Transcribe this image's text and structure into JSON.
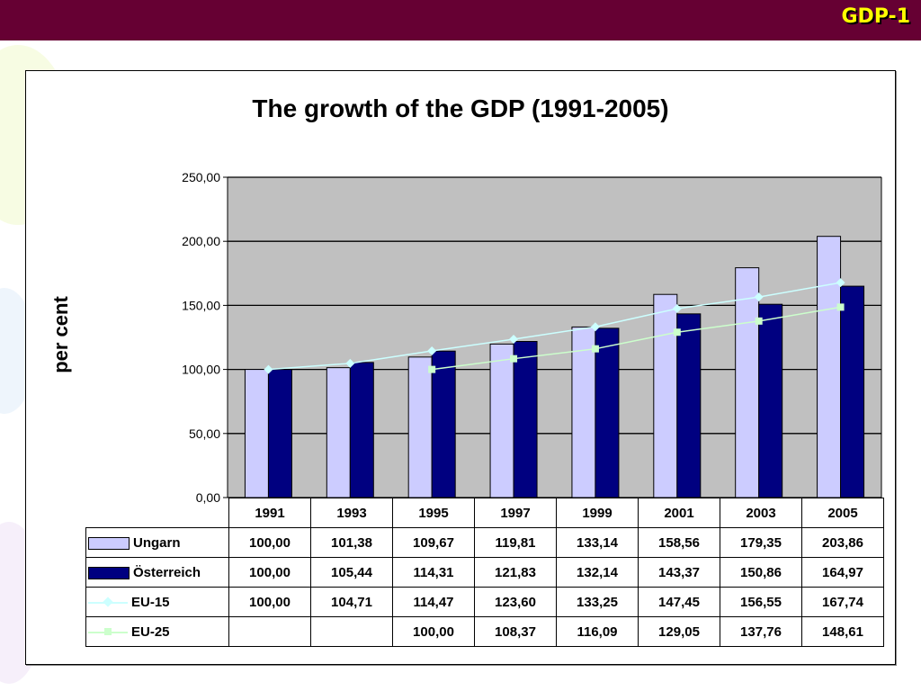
{
  "header": {
    "slide_id": "GDP-1"
  },
  "chart_data": {
    "type": "bar",
    "title": "The growth of the GDP (1991-2005)",
    "xlabel": "",
    "ylabel": "per cent",
    "ylim": [
      0,
      250
    ],
    "yticks": [
      "0,00",
      "50,00",
      "100,00",
      "150,00",
      "200,00",
      "250,00"
    ],
    "ytick_values": [
      0,
      50,
      100,
      150,
      200,
      250
    ],
    "grid": true,
    "legend": "data-table",
    "categories": [
      "1991",
      "1993",
      "1995",
      "1997",
      "1999",
      "2001",
      "2003",
      "2005"
    ],
    "series": [
      {
        "name": "Ungarn",
        "kind": "bar",
        "color": "#ccccff",
        "values": [
          100.0,
          101.38,
          109.67,
          119.81,
          133.14,
          158.56,
          179.35,
          203.86
        ],
        "labels": [
          "100,00",
          "101,38",
          "109,67",
          "119,81",
          "133,14",
          "158,56",
          "179,35",
          "203,86"
        ]
      },
      {
        "name": "Österreich",
        "kind": "bar",
        "color": "#000080",
        "values": [
          100.0,
          105.44,
          114.31,
          121.83,
          132.14,
          143.37,
          150.86,
          164.97
        ],
        "labels": [
          "100,00",
          "105,44",
          "114,31",
          "121,83",
          "132,14",
          "143,37",
          "150,86",
          "164,97"
        ]
      },
      {
        "name": "EU-15",
        "kind": "line",
        "color": "#ccffff",
        "marker": "diamond",
        "values": [
          100.0,
          104.71,
          114.47,
          123.6,
          133.25,
          147.45,
          156.55,
          167.74
        ],
        "labels": [
          "100,00",
          "104,71",
          "114,47",
          "123,60",
          "133,25",
          "147,45",
          "156,55",
          "167,74"
        ]
      },
      {
        "name": "EU-25",
        "kind": "line",
        "color": "#ccffcc",
        "marker": "square",
        "values": [
          null,
          null,
          100.0,
          108.37,
          116.09,
          129.05,
          137.76,
          148.61
        ],
        "labels": [
          "",
          "",
          "100,00",
          "108,37",
          "116,09",
          "129,05",
          "137,76",
          "148,61"
        ]
      }
    ]
  }
}
